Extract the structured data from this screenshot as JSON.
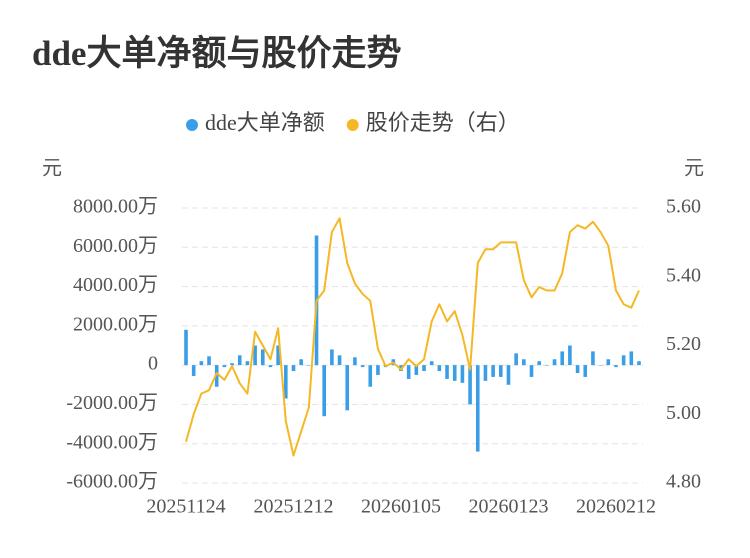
{
  "chart_data": {
    "type": "bar-line",
    "title": "dde大单净额与股价走势",
    "y_label": "元",
    "y2_label": "元",
    "categories": [
      "20251124",
      null,
      null,
      null,
      null,
      null,
      null,
      null,
      null,
      null,
      null,
      null,
      null,
      null,
      "20251212",
      null,
      null,
      null,
      null,
      null,
      null,
      null,
      null,
      null,
      null,
      null,
      null,
      null,
      "20260105",
      null,
      null,
      null,
      null,
      null,
      null,
      null,
      null,
      null,
      null,
      null,
      null,
      null,
      "20260123",
      null,
      null,
      null,
      null,
      null,
      null,
      null,
      null,
      null,
      null,
      null,
      null,
      null,
      "20260212",
      null,
      null,
      null
    ],
    "series": [
      {
        "name": "dde大单净额",
        "type": "bar",
        "color": "#3a9ee6",
        "values": [
          1800,
          -550,
          200,
          450,
          -1100,
          -100,
          100,
          500,
          200,
          1000,
          800,
          -100,
          1000,
          -1700,
          -300,
          300,
          0,
          6600,
          -2600,
          800,
          500,
          -2300,
          400,
          -100,
          -1100,
          -500,
          -100,
          300,
          -300,
          -700,
          -500,
          -300,
          200,
          -300,
          -700,
          -800,
          -900,
          -2000,
          -4400,
          -800,
          -600,
          -600,
          -1000,
          600,
          300,
          -600,
          200,
          0,
          300,
          700,
          1000,
          -400,
          -600,
          700,
          0,
          300,
          -100,
          500,
          700,
          200
        ]
      },
      {
        "name": "股价走势（右）",
        "type": "line",
        "axis": "y2",
        "color": "#f5b825",
        "values": [
          4.92,
          5.0,
          5.06,
          5.07,
          5.12,
          5.1,
          5.14,
          5.09,
          5.06,
          5.24,
          5.2,
          5.16,
          5.25,
          4.98,
          4.88,
          4.95,
          5.02,
          5.33,
          5.36,
          5.53,
          5.57,
          5.44,
          5.38,
          5.35,
          5.33,
          5.19,
          5.14,
          5.15,
          5.13,
          5.16,
          5.14,
          5.16,
          5.27,
          5.32,
          5.27,
          5.3,
          5.23,
          5.13,
          5.44,
          5.48,
          5.48,
          5.5,
          5.5,
          5.5,
          5.39,
          5.34,
          5.37,
          5.36,
          5.36,
          5.41,
          5.53,
          5.55,
          5.54,
          5.56,
          5.53,
          5.49,
          5.36,
          5.32,
          5.31,
          5.36
        ]
      }
    ],
    "ylim": [
      -6000,
      8000
    ],
    "yticks": [
      {
        "value": -6000,
        "label": "-6000.00万"
      },
      {
        "value": -4000,
        "label": "-4000.00万"
      },
      {
        "value": -2000,
        "label": "-2000.00万"
      },
      0,
      {
        "value": 2000,
        "label": "2000.00万"
      },
      {
        "value": 4000,
        "label": "4000.00万"
      },
      {
        "value": 6000,
        "label": "6000.00万"
      },
      {
        "value": 8000,
        "label": "8000.00万"
      }
    ],
    "y2lim": [
      4.8,
      5.6
    ],
    "y2ticks": [
      {
        "value": 4.8,
        "label": "4.80"
      },
      {
        "value": 5.0,
        "label": "5.00"
      },
      {
        "value": 5.2,
        "label": "5.20"
      },
      {
        "value": 5.4,
        "label": "5.40"
      },
      {
        "value": 5.6,
        "label": "5.60"
      }
    ],
    "grid": true
  }
}
